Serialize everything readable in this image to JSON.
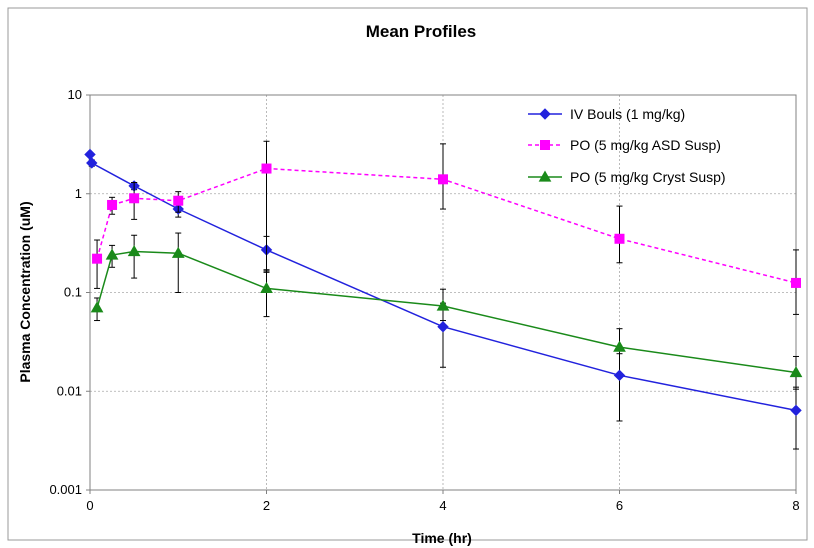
{
  "chart_data": {
    "type": "line",
    "title": "Mean Profiles",
    "xlabel": "Time (hr)",
    "ylabel": "Plasma Concentration (uM)",
    "xlim": [
      0,
      8
    ],
    "ylim": [
      0.001,
      10
    ],
    "yscale": "log",
    "grid": true,
    "legend_position": "top-right",
    "x_ticks": [
      "0",
      "2",
      "4",
      "6",
      "8"
    ],
    "y_ticks": [
      "10",
      "1",
      "0.1",
      "0.01",
      "0.001"
    ],
    "series": [
      {
        "name": "IV Bouls (1 mg/kg)",
        "color": "#2222dd",
        "marker": "diamond",
        "line_style": "solid",
        "points": [
          {
            "x": 0,
            "y": 2.5
          },
          {
            "x": 0.02,
            "y": 2.05
          },
          {
            "x": 0.5,
            "y": 1.2
          },
          {
            "x": 1,
            "y": 0.7
          },
          {
            "x": 2,
            "y": 0.27
          },
          {
            "x": 4,
            "y": 0.045
          },
          {
            "x": 6,
            "y": 0.0145
          },
          {
            "x": 8,
            "y": 0.0064
          }
        ],
        "error_bars": [
          {
            "x": 0.02,
            "lo": 1.9,
            "hi": 2.2
          },
          {
            "x": 0.5,
            "lo": 1.1,
            "hi": 1.3
          },
          {
            "x": 1,
            "lo": 0.58,
            "hi": 0.82
          },
          {
            "x": 2,
            "lo": 0.17,
            "hi": 0.37
          },
          {
            "x": 4,
            "lo": 0.0175,
            "hi": 0.078
          },
          {
            "x": 6,
            "lo": 0.005,
            "hi": 0.027
          },
          {
            "x": 8,
            "lo": 0.0026,
            "hi": 0.011
          }
        ]
      },
      {
        "name": "PO (5 mg/kg ASD Susp)",
        "color": "#ff00ff",
        "marker": "square",
        "line_style": "dashed",
        "points": [
          {
            "x": 0.08,
            "y": 0.22
          },
          {
            "x": 0.25,
            "y": 0.77
          },
          {
            "x": 0.5,
            "y": 0.9
          },
          {
            "x": 1,
            "y": 0.85
          },
          {
            "x": 2,
            "y": 1.8
          },
          {
            "x": 4,
            "y": 1.4
          },
          {
            "x": 6,
            "y": 0.35
          },
          {
            "x": 8,
            "y": 0.125
          }
        ],
        "error_bars": [
          {
            "x": 0.08,
            "lo": 0.11,
            "hi": 0.34
          },
          {
            "x": 0.25,
            "lo": 0.62,
            "hi": 0.92
          },
          {
            "x": 0.5,
            "lo": 0.55,
            "hi": 1.3
          },
          {
            "x": 1,
            "lo": 0.65,
            "hi": 1.05
          },
          {
            "x": 2,
            "lo": 0.16,
            "hi": 3.4
          },
          {
            "x": 4,
            "lo": 0.7,
            "hi": 3.2
          },
          {
            "x": 6,
            "lo": 0.2,
            "hi": 0.75
          },
          {
            "x": 8,
            "lo": 0.06,
            "hi": 0.27
          }
        ]
      },
      {
        "name": "PO (5 mg/kg Cryst Susp)",
        "color": "#1a8a1a",
        "marker": "triangle",
        "line_style": "solid",
        "points": [
          {
            "x": 0.08,
            "y": 0.07
          },
          {
            "x": 0.25,
            "y": 0.24
          },
          {
            "x": 0.5,
            "y": 0.26
          },
          {
            "x": 1,
            "y": 0.25
          },
          {
            "x": 2,
            "y": 0.11
          },
          {
            "x": 4,
            "y": 0.073
          },
          {
            "x": 6,
            "y": 0.028
          },
          {
            "x": 8,
            "y": 0.0155
          }
        ],
        "error_bars": [
          {
            "x": 0.08,
            "lo": 0.052,
            "hi": 0.088
          },
          {
            "x": 0.25,
            "lo": 0.18,
            "hi": 0.3
          },
          {
            "x": 0.5,
            "lo": 0.14,
            "hi": 0.38
          },
          {
            "x": 1,
            "lo": 0.1,
            "hi": 0.4
          },
          {
            "x": 2,
            "lo": 0.057,
            "hi": 0.165
          },
          {
            "x": 4,
            "lo": 0.052,
            "hi": 0.108
          },
          {
            "x": 6,
            "lo": 0.024,
            "hi": 0.043
          },
          {
            "x": 8,
            "lo": 0.0105,
            "hi": 0.0225
          }
        ]
      }
    ]
  }
}
